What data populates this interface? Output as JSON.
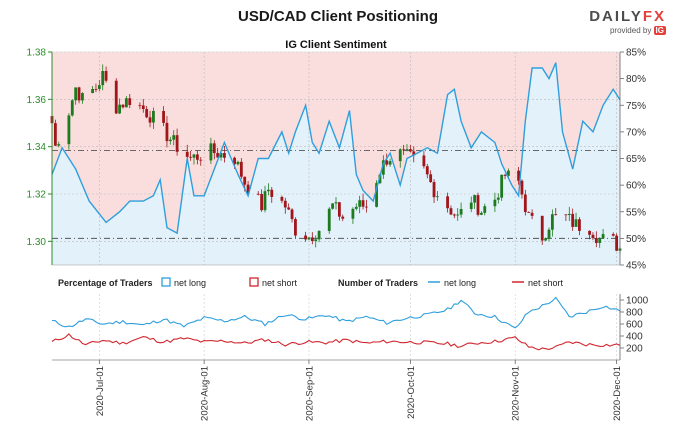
{
  "header": {
    "title": "USD/CAD Client Positioning",
    "logo_left": "DAILY",
    "logo_right": "FX",
    "provided_by": "provided by",
    "ig": "IG"
  },
  "colors": {
    "price_axis": "#2e8b2e",
    "net_long": "#2e9fdc",
    "net_short": "#d0262e",
    "up_candle": "#1e7a1e",
    "down_candle": "#a0161b",
    "long_fill": "#e3f1fb",
    "short_fill": "#fadede"
  },
  "chart_data": [
    {
      "type": "candlestick+line",
      "title": "IG Client Sentiment",
      "y_left": {
        "ylim": [
          1.29,
          1.38
        ],
        "ticks": [
          "1.30",
          "1.32",
          "1.34",
          "1.36",
          "1.38"
        ]
      },
      "y_right": {
        "ylim": [
          45,
          85
        ],
        "ticks": [
          "45%",
          "50%",
          "55%",
          "60%",
          "65%",
          "70%",
          "75%",
          "80%",
          "85%"
        ]
      },
      "reference_lines": {
        "sentiment_50": 50,
        "sentiment_66": 66.5
      },
      "price_anchors": [
        [
          "2020-06-17",
          1.35
        ],
        [
          "2020-06-18",
          1.34
        ],
        [
          "2020-06-22",
          1.355
        ],
        [
          "2020-06-24",
          1.365
        ],
        [
          "2020-06-26",
          1.36
        ],
        [
          "2020-06-30",
          1.365
        ],
        [
          "2020-07-02",
          1.37
        ],
        [
          "2020-07-06",
          1.357
        ],
        [
          "2020-07-10",
          1.36
        ],
        [
          "2020-07-14",
          1.356
        ],
        [
          "2020-07-17",
          1.352
        ],
        [
          "2020-07-21",
          1.345
        ],
        [
          "2020-07-24",
          1.34
        ],
        [
          "2020-07-28",
          1.335
        ],
        [
          "2020-08-03",
          1.338
        ],
        [
          "2020-08-06",
          1.337
        ],
        [
          "2020-08-10",
          1.335
        ],
        [
          "2020-08-13",
          1.325
        ],
        [
          "2020-08-18",
          1.315
        ],
        [
          "2020-08-20",
          1.322
        ],
        [
          "2020-08-25",
          1.315
        ],
        [
          "2020-08-28",
          1.305
        ],
        [
          "2020-09-01",
          1.302
        ],
        [
          "2020-09-04",
          1.305
        ],
        [
          "2020-09-08",
          1.315
        ],
        [
          "2020-09-11",
          1.31
        ],
        [
          "2020-09-15",
          1.315
        ],
        [
          "2020-09-18",
          1.315
        ],
        [
          "2020-09-22",
          1.33
        ],
        [
          "2020-09-24",
          1.335
        ],
        [
          "2020-09-28",
          1.337
        ],
        [
          "2020-10-01",
          1.335
        ],
        [
          "2020-10-05",
          1.33
        ],
        [
          "2020-10-08",
          1.322
        ],
        [
          "2020-10-12",
          1.315
        ],
        [
          "2020-10-15",
          1.31
        ],
        [
          "2020-10-19",
          1.318
        ],
        [
          "2020-10-22",
          1.313
        ],
        [
          "2020-10-26",
          1.318
        ],
        [
          "2020-10-29",
          1.328
        ],
        [
          "2020-11-02",
          1.325
        ],
        [
          "2020-11-05",
          1.31
        ],
        [
          "2020-11-09",
          1.302
        ],
        [
          "2020-11-12",
          1.31
        ],
        [
          "2020-11-16",
          1.31
        ],
        [
          "2020-11-19",
          1.307
        ],
        [
          "2020-11-23",
          1.306
        ],
        [
          "2020-11-26",
          1.301
        ],
        [
          "2020-11-30",
          1.3
        ],
        [
          "2020-12-02",
          1.297
        ]
      ],
      "net_long_pct": [
        [
          "2020-06-17",
          62
        ],
        [
          "2020-06-20",
          67
        ],
        [
          "2020-06-24",
          63
        ],
        [
          "2020-06-28",
          57
        ],
        [
          "2020-07-03",
          53
        ],
        [
          "2020-07-07",
          55
        ],
        [
          "2020-07-10",
          57
        ],
        [
          "2020-07-14",
          57
        ],
        [
          "2020-07-17",
          58
        ],
        [
          "2020-07-19",
          61
        ],
        [
          "2020-07-21",
          52
        ],
        [
          "2020-07-24",
          51
        ],
        [
          "2020-07-27",
          65
        ],
        [
          "2020-07-29",
          58
        ],
        [
          "2020-08-01",
          58
        ],
        [
          "2020-08-04",
          63
        ],
        [
          "2020-08-07",
          68
        ],
        [
          "2020-08-11",
          62
        ],
        [
          "2020-08-14",
          58
        ],
        [
          "2020-08-17",
          65
        ],
        [
          "2020-08-20",
          65
        ],
        [
          "2020-08-24",
          70
        ],
        [
          "2020-08-26",
          66
        ],
        [
          "2020-08-28",
          70
        ],
        [
          "2020-08-31",
          75
        ],
        [
          "2020-09-02",
          68
        ],
        [
          "2020-09-04",
          66
        ],
        [
          "2020-09-07",
          72
        ],
        [
          "2020-09-10",
          67
        ],
        [
          "2020-09-13",
          74
        ],
        [
          "2020-09-15",
          62
        ],
        [
          "2020-09-17",
          59
        ],
        [
          "2020-09-20",
          57
        ],
        [
          "2020-09-23",
          64
        ],
        [
          "2020-09-25",
          66
        ],
        [
          "2020-09-28",
          60
        ],
        [
          "2020-09-30",
          65
        ],
        [
          "2020-10-03",
          66
        ],
        [
          "2020-10-06",
          67
        ],
        [
          "2020-10-09",
          66
        ],
        [
          "2020-10-12",
          77
        ],
        [
          "2020-10-14",
          78
        ],
        [
          "2020-10-16",
          72
        ],
        [
          "2020-10-19",
          67
        ],
        [
          "2020-10-22",
          70
        ],
        [
          "2020-10-26",
          68
        ],
        [
          "2020-10-28",
          64
        ],
        [
          "2020-10-31",
          60
        ],
        [
          "2020-11-02",
          58
        ],
        [
          "2020-11-04",
          72
        ],
        [
          "2020-11-06",
          82
        ],
        [
          "2020-11-09",
          82
        ],
        [
          "2020-11-11",
          80
        ],
        [
          "2020-11-13",
          83
        ],
        [
          "2020-11-15",
          70
        ],
        [
          "2020-11-18",
          63
        ],
        [
          "2020-11-21",
          72
        ],
        [
          "2020-11-24",
          70
        ],
        [
          "2020-11-27",
          75
        ],
        [
          "2020-11-30",
          78
        ],
        [
          "2020-12-02",
          76
        ]
      ]
    },
    {
      "type": "line",
      "legend": {
        "pct_label": "Percentage of Traders",
        "pct_long": "net long",
        "pct_short": "net short",
        "num_label": "Number of Traders",
        "num_long": "net long",
        "num_short": "net short"
      },
      "ylim": [
        0,
        1100
      ],
      "ticks": [
        "200",
        "400",
        "600",
        "800",
        "1000"
      ],
      "x_ticks": [
        [
          "2020-07-01",
          "2020-Jul-01"
        ],
        [
          "2020-08-01",
          "2020-Aug-01"
        ],
        [
          "2020-09-01",
          "2020-Sep-01"
        ],
        [
          "2020-10-01",
          "2020-Oct-01"
        ],
        [
          "2020-11-01",
          "2020-Nov-01"
        ],
        [
          "2020-12-01",
          "2020-Dec-01"
        ]
      ],
      "net_long_count": [
        [
          "2020-06-17",
          650
        ],
        [
          "2020-06-22",
          550
        ],
        [
          "2020-06-27",
          680
        ],
        [
          "2020-07-02",
          600
        ],
        [
          "2020-07-08",
          640
        ],
        [
          "2020-07-14",
          580
        ],
        [
          "2020-07-20",
          680
        ],
        [
          "2020-07-26",
          560
        ],
        [
          "2020-08-01",
          700
        ],
        [
          "2020-08-07",
          650
        ],
        [
          "2020-08-13",
          720
        ],
        [
          "2020-08-19",
          600
        ],
        [
          "2020-08-25",
          760
        ],
        [
          "2020-08-31",
          680
        ],
        [
          "2020-09-06",
          750
        ],
        [
          "2020-09-12",
          640
        ],
        [
          "2020-09-18",
          720
        ],
        [
          "2020-09-24",
          620
        ],
        [
          "2020-09-30",
          700
        ],
        [
          "2020-10-06",
          750
        ],
        [
          "2020-10-12",
          840
        ],
        [
          "2020-10-16",
          1000
        ],
        [
          "2020-10-20",
          780
        ],
        [
          "2020-10-26",
          720
        ],
        [
          "2020-11-01",
          520
        ],
        [
          "2020-11-05",
          800
        ],
        [
          "2020-11-09",
          900
        ],
        [
          "2020-11-13",
          1020
        ],
        [
          "2020-11-17",
          720
        ],
        [
          "2020-11-22",
          800
        ],
        [
          "2020-11-27",
          900
        ],
        [
          "2020-12-02",
          820
        ]
      ],
      "net_short_count": [
        [
          "2020-06-17",
          300
        ],
        [
          "2020-06-22",
          420
        ],
        [
          "2020-06-27",
          250
        ],
        [
          "2020-07-02",
          330
        ],
        [
          "2020-07-08",
          280
        ],
        [
          "2020-07-14",
          380
        ],
        [
          "2020-07-20",
          300
        ],
        [
          "2020-07-26",
          360
        ],
        [
          "2020-08-01",
          300
        ],
        [
          "2020-08-07",
          320
        ],
        [
          "2020-08-13",
          280
        ],
        [
          "2020-08-19",
          340
        ],
        [
          "2020-08-25",
          260
        ],
        [
          "2020-08-31",
          300
        ],
        [
          "2020-09-06",
          290
        ],
        [
          "2020-09-12",
          330
        ],
        [
          "2020-09-18",
          280
        ],
        [
          "2020-09-24",
          310
        ],
        [
          "2020-09-30",
          300
        ],
        [
          "2020-10-06",
          290
        ],
        [
          "2020-10-12",
          270
        ],
        [
          "2020-10-16",
          230
        ],
        [
          "2020-10-20",
          280
        ],
        [
          "2020-10-26",
          310
        ],
        [
          "2020-11-01",
          370
        ],
        [
          "2020-11-05",
          220
        ],
        [
          "2020-11-09",
          180
        ],
        [
          "2020-11-13",
          210
        ],
        [
          "2020-11-17",
          300
        ],
        [
          "2020-11-22",
          260
        ],
        [
          "2020-11-27",
          250
        ],
        [
          "2020-12-02",
          250
        ]
      ]
    }
  ]
}
